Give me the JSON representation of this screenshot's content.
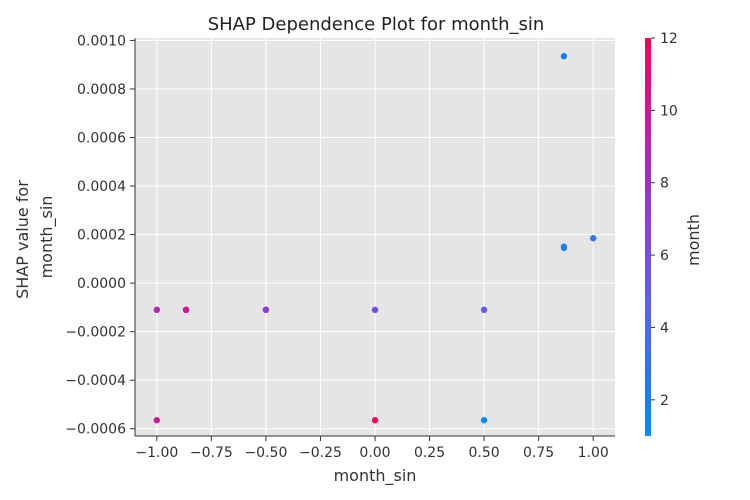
{
  "chart_data": {
    "type": "scatter",
    "title": "SHAP Dependence Plot for month_sin",
    "xlabel": "month_sin",
    "ylabel_lines": [
      "SHAP value for",
      "month_sin"
    ],
    "xlim": [
      -1.1,
      1.1
    ],
    "ylim": [
      -0.00063,
      0.00101
    ],
    "xticks": [
      -1.0,
      -0.75,
      -0.5,
      -0.25,
      0.0,
      0.25,
      0.5,
      0.75,
      1.0
    ],
    "xtick_labels": [
      "−1.00",
      "−0.75",
      "−0.50",
      "−0.25",
      "0.00",
      "0.25",
      "0.50",
      "0.75",
      "1.00"
    ],
    "yticks": [
      -0.0006,
      -0.0004,
      -0.0002,
      0.0,
      0.0002,
      0.0004,
      0.0006,
      0.0008,
      0.001
    ],
    "ytick_labels": [
      "−0.0006",
      "−0.0004",
      "−0.0002",
      "0.0000",
      "0.0002",
      "0.0004",
      "0.0006",
      "0.0008",
      "0.0010"
    ],
    "grid": true,
    "colorbar": {
      "label": "month",
      "range": [
        1,
        12
      ],
      "ticks": [
        2,
        4,
        6,
        8,
        10,
        12
      ],
      "tick_labels": [
        "2",
        "4",
        "6",
        "8",
        "10",
        "12"
      ],
      "colors": [
        "#008afb",
        "#5a62ee",
        "#a52cc6",
        "#ff0052"
      ]
    },
    "points": [
      {
        "x": -1.0,
        "y": -0.00011,
        "color_value": 9
      },
      {
        "x": -1.0,
        "y": -0.000565,
        "color_value": 10
      },
      {
        "x": -0.866,
        "y": -0.00011,
        "color_value": 8
      },
      {
        "x": -0.866,
        "y": -0.00011,
        "color_value": 10
      },
      {
        "x": -0.5,
        "y": -0.00011,
        "color_value": 11
      },
      {
        "x": -0.5,
        "y": -0.00011,
        "color_value": 7
      },
      {
        "x": 0.0,
        "y": -0.00011,
        "color_value": 6
      },
      {
        "x": 0.0,
        "y": -0.000565,
        "color_value": 12
      },
      {
        "x": 0.5,
        "y": -0.00011,
        "color_value": 5
      },
      {
        "x": 0.5,
        "y": -0.000565,
        "color_value": 1
      },
      {
        "x": 0.866,
        "y": 0.000935,
        "color_value": 2
      },
      {
        "x": 0.866,
        "y": 0.00015,
        "color_value": 4
      },
      {
        "x": 0.866,
        "y": 0.000145,
        "color_value": 2
      },
      {
        "x": 1.0,
        "y": 0.000185,
        "color_value": 3
      }
    ]
  }
}
